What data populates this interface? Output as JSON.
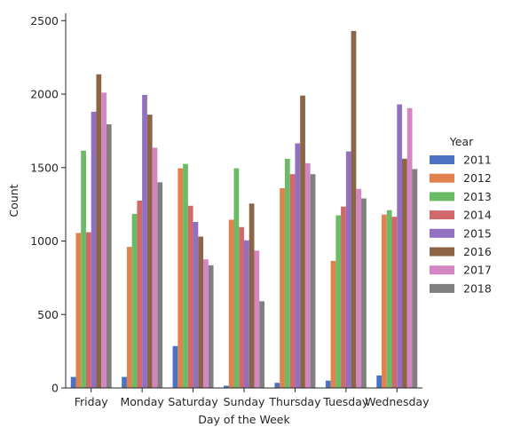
{
  "chart_data": {
    "type": "bar",
    "xlabel": "Day of the Week",
    "ylabel": "Count",
    "ylim": [
      0,
      2550
    ],
    "yticks": [
      0,
      500,
      1000,
      1500,
      2000,
      2500
    ],
    "categories": [
      "Friday",
      "Monday",
      "Saturday",
      "Sunday",
      "Thursday",
      "Tuesday",
      "Wednesday"
    ],
    "legend": {
      "title": "Year",
      "placement": "right"
    },
    "series": [
      {
        "name": "2011",
        "color": "#4c72c4",
        "values": [
          75,
          75,
          285,
          15,
          35,
          50,
          85
        ]
      },
      {
        "name": "2012",
        "color": "#e1814d",
        "values": [
          1055,
          960,
          1495,
          1145,
          1360,
          865,
          1180
        ]
      },
      {
        "name": "2013",
        "color": "#6abb64",
        "values": [
          1615,
          1185,
          1525,
          1495,
          1560,
          1175,
          1210
        ]
      },
      {
        "name": "2014",
        "color": "#d1686a",
        "values": [
          1060,
          1275,
          1240,
          1095,
          1455,
          1235,
          1165
        ]
      },
      {
        "name": "2015",
        "color": "#9170c0",
        "values": [
          1880,
          1995,
          1130,
          1005,
          1665,
          1610,
          1930
        ]
      },
      {
        "name": "2016",
        "color": "#8c6546",
        "values": [
          2135,
          1860,
          1030,
          1255,
          1990,
          2430,
          1560
        ]
      },
      {
        "name": "2017",
        "color": "#d486c3",
        "values": [
          2010,
          1635,
          875,
          935,
          1530,
          1355,
          1905
        ]
      },
      {
        "name": "2018",
        "color": "#808080",
        "values": [
          1795,
          1400,
          835,
          590,
          1455,
          1290,
          1490
        ]
      }
    ]
  }
}
